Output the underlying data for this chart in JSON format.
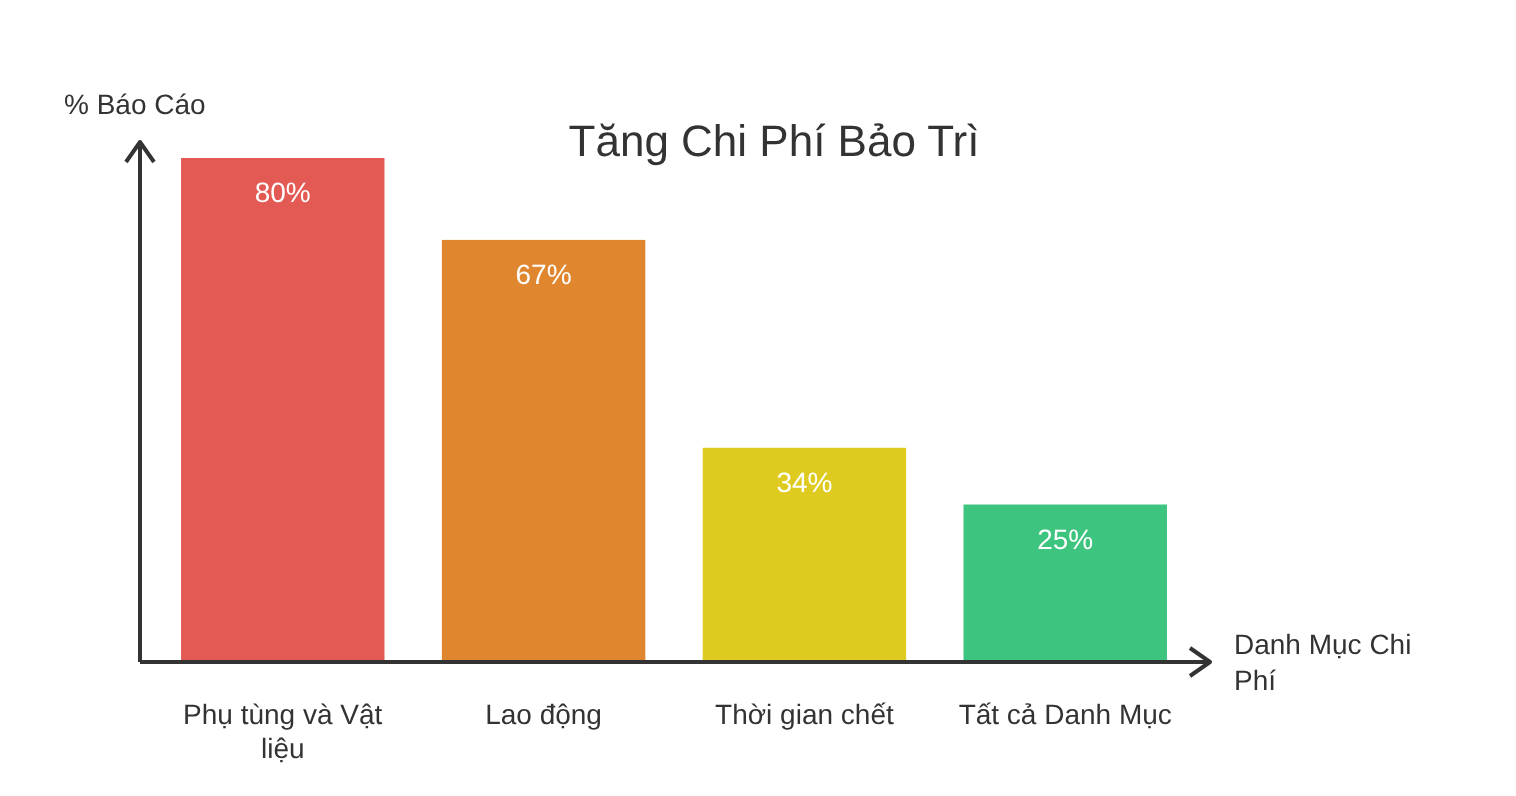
{
  "chart_data": {
    "type": "bar",
    "title": "Tăng Chi Phí Bảo Trì",
    "xlabel": "Danh Mục Chi Phí",
    "ylabel": "% Báo Cáo",
    "categories": [
      "Phụ tùng và Vật liệu",
      "Lao động",
      "Thời gian chết",
      "Tất cả Danh Mục"
    ],
    "values": [
      80,
      67,
      34,
      25
    ],
    "value_labels": [
      "80%",
      "67%",
      "34%",
      "25%"
    ],
    "colors": [
      "#e35a55",
      "#e0862f",
      "#dfcb1f",
      "#3dc47e"
    ],
    "tick_labels": "x"
  }
}
